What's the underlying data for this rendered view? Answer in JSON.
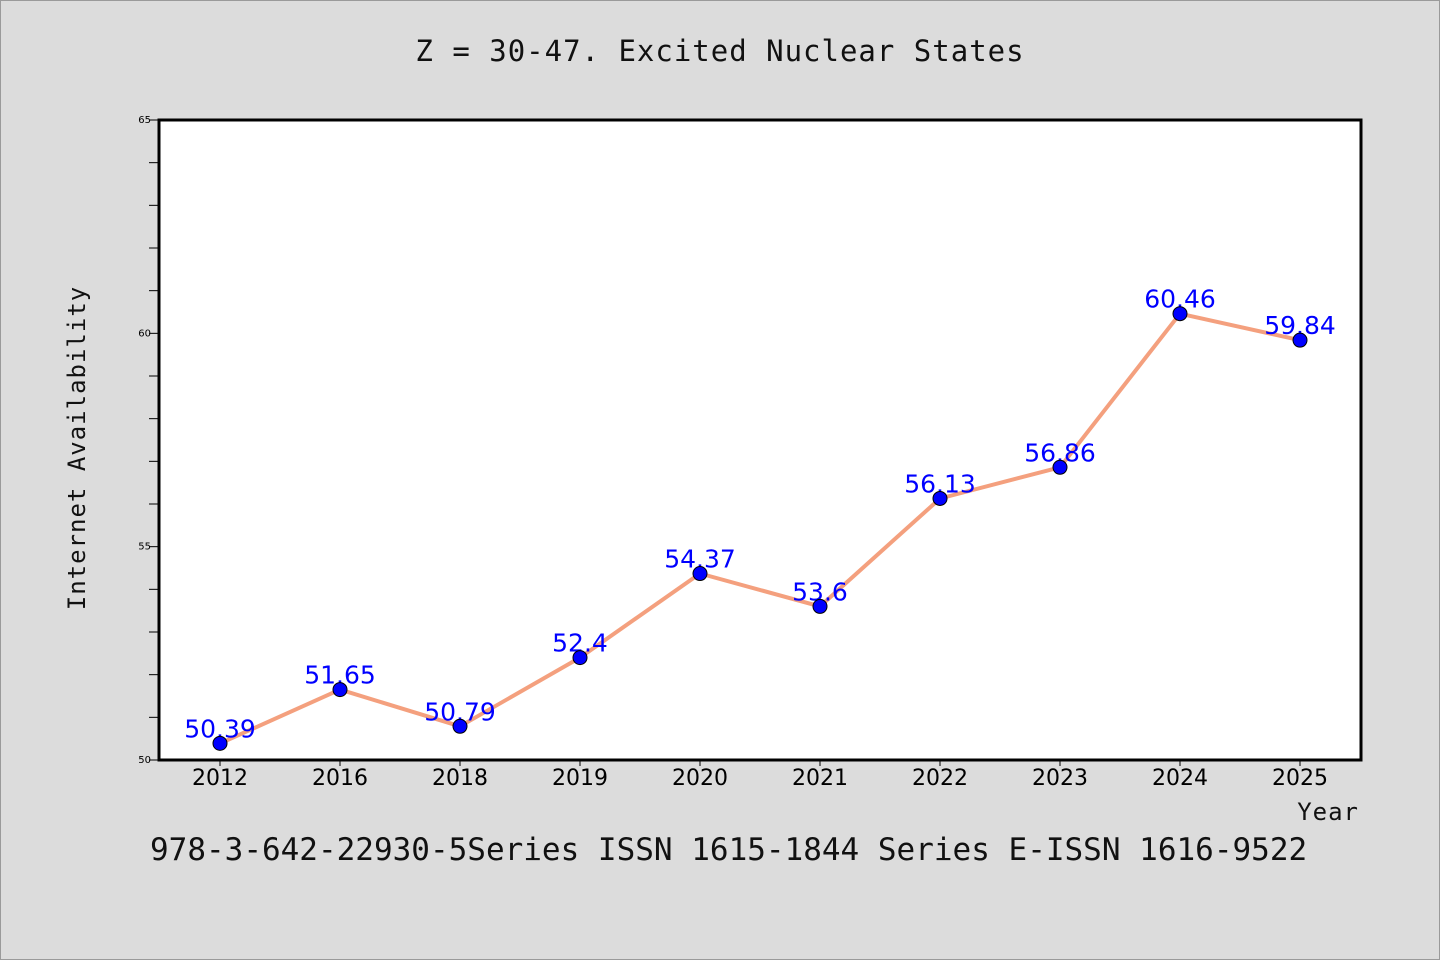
{
  "chart_data": {
    "type": "line",
    "title": "Z = 30-47. Excited Nuclear States",
    "xlabel": "Year",
    "ylabel": "Internet Availability",
    "categories": [
      "2012",
      "2016",
      "2018",
      "2019",
      "2020",
      "2021",
      "2022",
      "2023",
      "2024",
      "2025"
    ],
    "values": [
      50.39,
      51.65,
      50.79,
      52.4,
      54.37,
      53.6,
      56.13,
      56.86,
      60.46,
      59.84
    ],
    "ylim": [
      50,
      65
    ],
    "yticks": [
      "50",
      "55",
      "60",
      "65"
    ],
    "grid": false,
    "line_color": "#f4a07e",
    "marker_color": "#0000ff",
    "label_color": "#0000ff"
  },
  "caption": "978-3-642-22930-5Series ISSN 1615-1844 Series E-ISSN 1616-9522"
}
